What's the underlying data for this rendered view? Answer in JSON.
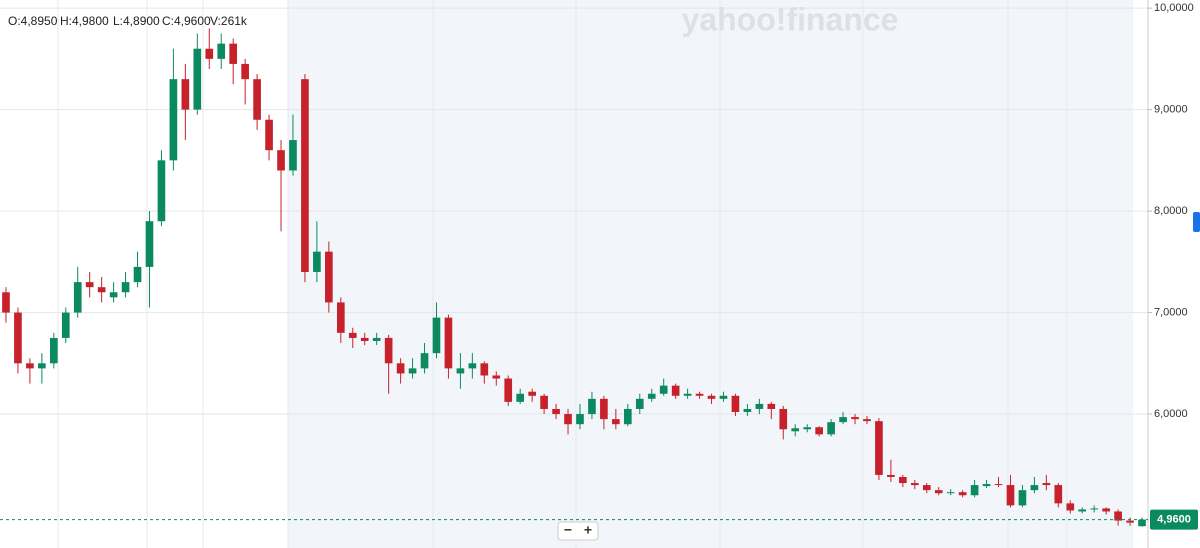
{
  "chart_data": {
    "type": "candlestick",
    "watermark": "yahoo!finance",
    "ohlc_legend": [
      "O:4,8950",
      "H:4,9800",
      "L:4,8900",
      "C:4,9600",
      "V:261k"
    ],
    "zoom_buttons": [
      "−",
      "+"
    ],
    "up_color": "#0b8a60",
    "down_color": "#c7212b",
    "ylim": [
      4.68,
      10.08
    ],
    "yticks": [
      {
        "value": 6,
        "label": "6,0000"
      },
      {
        "value": 7,
        "label": "7,0000"
      },
      {
        "value": 8,
        "label": "8,0000"
      },
      {
        "value": 9,
        "label": "9,0000"
      },
      {
        "value": 10,
        "label": "10,0000"
      }
    ],
    "grid": true,
    "last_price": {
      "value": 4.96,
      "label": "4,9600"
    },
    "open": [
      7.2,
      7.0,
      6.5,
      6.45,
      6.5,
      6.75,
      7.0,
      7.3,
      7.25,
      7.15,
      7.2,
      7.3,
      7.45,
      7.9,
      8.5,
      9.3,
      9.0,
      9.6,
      9.5,
      9.65,
      9.45,
      9.3,
      8.9,
      8.6,
      8.4,
      9.3,
      7.4,
      7.6,
      7.1,
      6.8,
      6.75,
      6.72,
      6.75,
      6.5,
      6.4,
      6.45,
      6.6,
      6.95,
      6.4,
      6.45,
      6.5,
      6.38,
      6.35,
      6.12,
      6.22,
      6.18,
      6.05,
      6.0,
      5.9,
      6.0,
      6.15,
      5.95,
      5.9,
      6.05,
      6.15,
      6.2,
      6.28,
      6.18,
      6.2,
      6.18,
      6.15,
      6.18,
      6.02,
      6.05,
      6.1,
      6.05,
      5.83,
      5.85,
      5.87,
      5.8,
      5.92,
      5.97,
      5.95,
      5.93,
      5.4,
      5.38,
      5.32,
      5.3,
      5.25,
      5.22,
      5.23,
      5.2,
      5.29,
      5.31,
      5.3,
      5.1,
      5.25,
      5.32,
      5.3,
      5.12,
      5.04,
      5.06,
      5.07,
      5.04,
      4.95,
      4.895
    ],
    "high": [
      7.25,
      7.05,
      6.55,
      6.6,
      6.8,
      7.05,
      7.45,
      7.4,
      7.35,
      7.3,
      7.4,
      7.6,
      8.0,
      8.6,
      9.6,
      9.45,
      9.75,
      9.8,
      9.75,
      9.7,
      9.5,
      9.35,
      8.95,
      8.7,
      8.95,
      9.35,
      7.9,
      7.7,
      7.15,
      6.85,
      6.8,
      6.8,
      6.78,
      6.55,
      6.55,
      6.7,
      7.1,
      6.98,
      6.6,
      6.6,
      6.52,
      6.42,
      6.38,
      6.25,
      6.25,
      6.2,
      6.1,
      6.05,
      6.1,
      6.22,
      6.18,
      6.05,
      6.1,
      6.2,
      6.25,
      6.35,
      6.3,
      6.25,
      6.22,
      6.2,
      6.22,
      6.2,
      6.1,
      6.15,
      6.12,
      6.08,
      5.9,
      5.9,
      5.88,
      5.95,
      6.02,
      6.0,
      5.98,
      5.96,
      5.55,
      5.4,
      5.35,
      5.32,
      5.28,
      5.26,
      5.25,
      5.35,
      5.35,
      5.38,
      5.4,
      5.3,
      5.38,
      5.4,
      5.32,
      5.15,
      5.08,
      5.1,
      5.08,
      5.06,
      4.98,
      4.98
    ],
    "low": [
      6.9,
      6.4,
      6.3,
      6.3,
      6.45,
      6.7,
      6.95,
      7.15,
      7.1,
      7.1,
      7.15,
      7.25,
      7.05,
      7.85,
      8.4,
      8.7,
      8.95,
      9.4,
      9.4,
      9.25,
      9.05,
      8.8,
      8.5,
      7.8,
      8.35,
      7.3,
      7.3,
      7.0,
      6.7,
      6.65,
      6.68,
      6.68,
      6.2,
      6.3,
      6.35,
      6.4,
      6.55,
      6.35,
      6.25,
      6.35,
      6.3,
      6.28,
      6.08,
      6.1,
      6.12,
      6.0,
      5.95,
      5.8,
      5.85,
      5.95,
      5.85,
      5.85,
      5.88,
      6.0,
      6.12,
      6.18,
      6.15,
      6.15,
      6.15,
      6.1,
      6.12,
      5.98,
      5.98,
      6.0,
      5.95,
      5.75,
      5.78,
      5.82,
      5.78,
      5.78,
      5.9,
      5.9,
      5.9,
      5.35,
      5.33,
      5.28,
      5.26,
      5.22,
      5.2,
      5.2,
      5.18,
      5.18,
      5.27,
      5.28,
      5.08,
      5.08,
      5.22,
      5.25,
      5.08,
      5.02,
      5.02,
      5.03,
      5.01,
      4.9,
      4.9,
      4.89
    ],
    "close": [
      7.0,
      6.5,
      6.45,
      6.5,
      6.75,
      7.0,
      7.3,
      7.25,
      7.2,
      7.2,
      7.3,
      7.45,
      7.9,
      8.5,
      9.3,
      9.0,
      9.6,
      9.5,
      9.65,
      9.45,
      9.3,
      8.9,
      8.6,
      8.4,
      8.7,
      7.4,
      7.6,
      7.1,
      6.8,
      6.75,
      6.72,
      6.75,
      6.5,
      6.4,
      6.45,
      6.6,
      6.95,
      6.45,
      6.45,
      6.5,
      6.38,
      6.35,
      6.12,
      6.2,
      6.18,
      6.05,
      6.0,
      5.9,
      6.0,
      6.15,
      5.95,
      5.9,
      6.05,
      6.15,
      6.2,
      6.28,
      6.18,
      6.2,
      6.18,
      6.15,
      6.18,
      6.02,
      6.05,
      6.1,
      6.05,
      5.85,
      5.86,
      5.87,
      5.8,
      5.92,
      5.97,
      5.95,
      5.93,
      5.4,
      5.38,
      5.32,
      5.3,
      5.25,
      5.22,
      5.23,
      5.2,
      5.3,
      5.31,
      5.3,
      5.1,
      5.25,
      5.3,
      5.3,
      5.12,
      5.05,
      5.06,
      5.07,
      5.04,
      4.95,
      4.93,
      4.96
    ]
  }
}
